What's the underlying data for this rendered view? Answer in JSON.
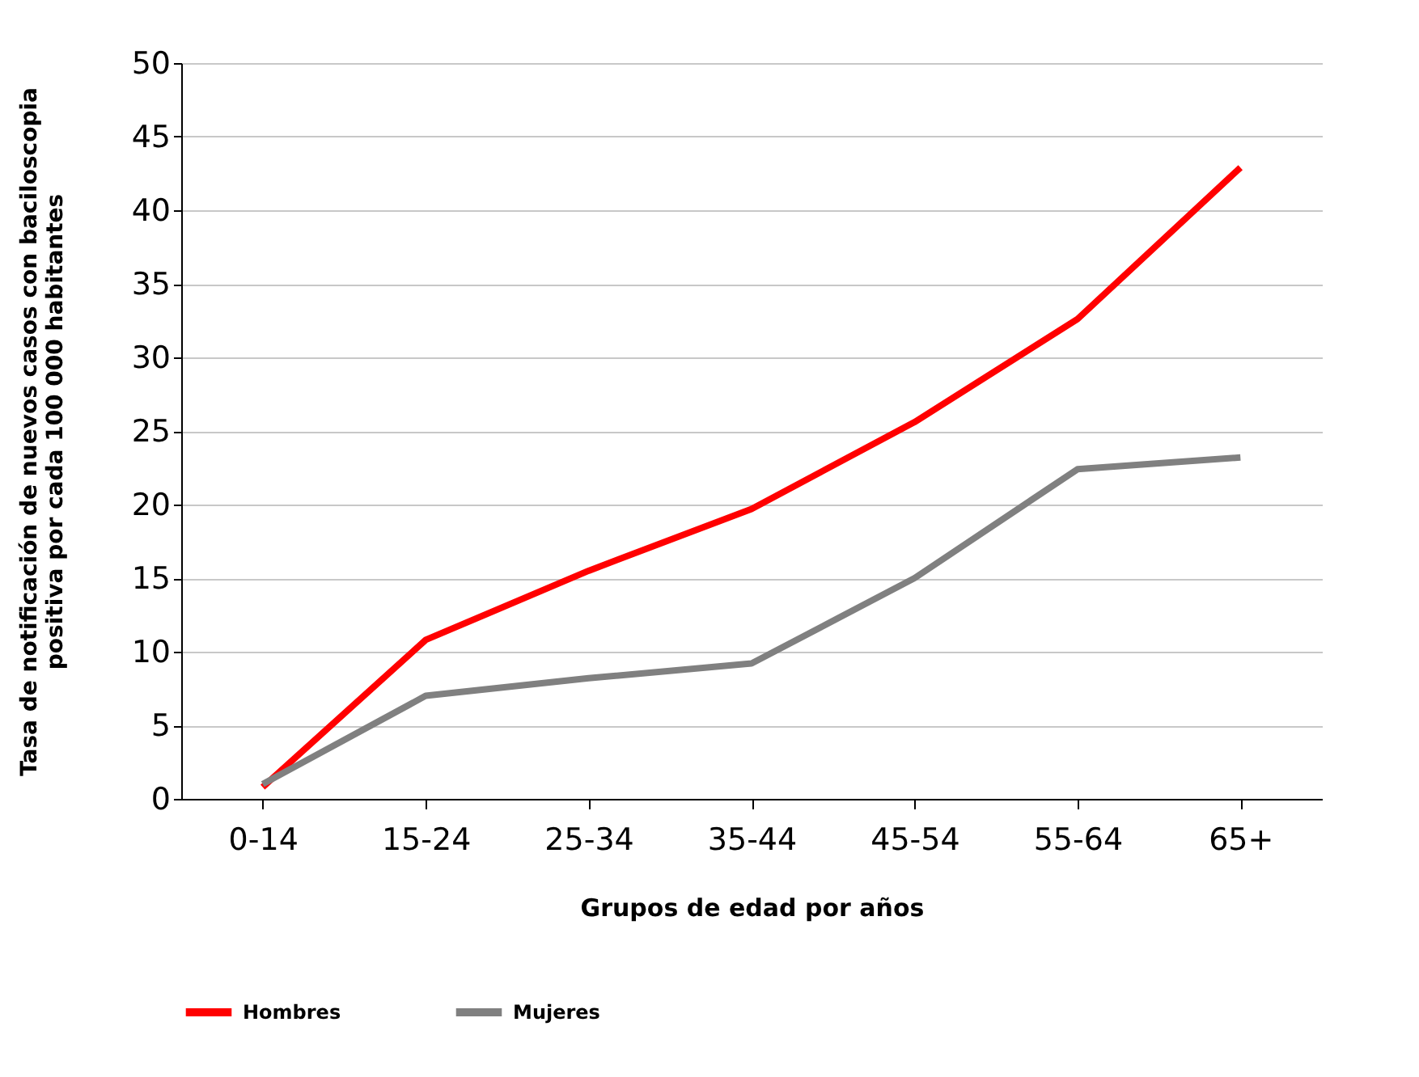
{
  "chart_data": {
    "type": "line",
    "ylabel": "Tasa de notificación de nuevos casos con baciloscopia\npositiva por cada 100 000 habitantes",
    "xlabel": "Grupos de edad por años",
    "categories": [
      "0-14",
      "15-24",
      "25-34",
      "35-44",
      "45-54",
      "55-64",
      "65+"
    ],
    "series": [
      {
        "name": "Hombres",
        "color": "#ff0000",
        "values": [
          0.8,
          10.8,
          15.5,
          19.7,
          25.6,
          32.6,
          42.9
        ]
      },
      {
        "name": "Mujeres",
        "color": "#808080",
        "values": [
          1.0,
          7.0,
          8.2,
          9.2,
          15.0,
          22.4,
          23.2
        ]
      }
    ],
    "ylim": [
      0,
      50
    ],
    "yticks": [
      0,
      5,
      10,
      15,
      20,
      25,
      30,
      35,
      40,
      45,
      50
    ],
    "grid": "y",
    "legend": "bottom",
    "marker": "none",
    "line_style": "solid"
  }
}
